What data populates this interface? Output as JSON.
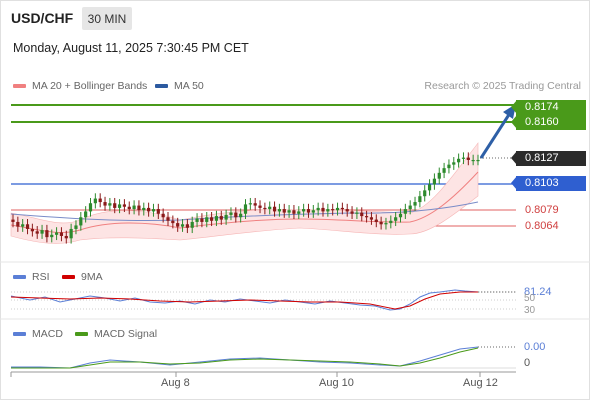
{
  "header": {
    "symbol": "USD/CHF",
    "timeframe": "30 MIN",
    "datetime": "Monday, August 11, 2025 7:30:45 PM CET"
  },
  "legend": {
    "items": [
      {
        "label": "MA 20 + Bollinger Bands",
        "color": "#f08080"
      },
      {
        "label": "MA 50",
        "color": "#2c5aa0"
      }
    ],
    "copyright": "Research © 2025 Trading Central"
  },
  "colors": {
    "green": "#4a9a1a",
    "blue": "#2f5fd0",
    "red": "#e06060",
    "arrow": "#2d5fa6",
    "current": "#2b2b2b"
  },
  "price_levels": {
    "target_high": "0.8174",
    "target_low": "0.8160",
    "current": "0.8127",
    "pivot": "0.8103",
    "support_1": "0.8079",
    "support_2": "0.8064"
  },
  "rsi": {
    "labels": [
      {
        "label": "RSI",
        "color": "#5b7fd6"
      },
      {
        "label": "9MA",
        "color": "#d00000"
      }
    ],
    "value": "81.24",
    "levels": [
      "70",
      "50",
      "30"
    ]
  },
  "macd": {
    "labels": [
      {
        "label": "MACD",
        "color": "#5b7fd6"
      },
      {
        "label": "MACD Signal",
        "color": "#4a9a1a"
      }
    ],
    "value": "0.00",
    "zero": "0"
  },
  "x_axis": {
    "labels": [
      "Aug 8",
      "Aug 10",
      "Aug 12"
    ]
  },
  "chart_data": {
    "type": "candlestick",
    "pair": "USD/CHF",
    "timeframe": "30 MIN",
    "ohlc_close_trend": [
      0.8074,
      0.807,
      0.8072,
      0.8068,
      0.8066,
      0.8064,
      0.8067,
      0.8061,
      0.8063,
      0.8065,
      0.8062,
      0.806,
      0.8068,
      0.8071,
      0.8078,
      0.8083,
      0.809,
      0.8094,
      0.8091,
      0.8088,
      0.809,
      0.8086,
      0.8089,
      0.8087,
      0.8085,
      0.8088,
      0.8084,
      0.8086,
      0.8083,
      0.8085,
      0.8081,
      0.8078,
      0.8075,
      0.8073,
      0.807,
      0.8072,
      0.8069,
      0.8074,
      0.8077,
      0.8074,
      0.8078,
      0.8075,
      0.8079,
      0.8076,
      0.808,
      0.8082,
      0.8078,
      0.8081,
      0.8089,
      0.809,
      0.8088,
      0.8086,
      0.8085,
      0.8087,
      0.8083,
      0.8085,
      0.8082,
      0.8084,
      0.8081,
      0.8083,
      0.8085,
      0.8082,
      0.8084,
      0.8086,
      0.8083,
      0.8085,
      0.8084,
      0.8086,
      0.8085,
      0.8083,
      0.8081,
      0.8082,
      0.8079,
      0.8078,
      0.8076,
      0.8074,
      0.8072,
      0.8073,
      0.8075,
      0.8078,
      0.8081,
      0.8085,
      0.8088,
      0.8091,
      0.8096,
      0.8101,
      0.8106,
      0.8111,
      0.8116,
      0.812,
      0.8123,
      0.8125,
      0.8128,
      0.8129,
      0.8127,
      0.8127,
      0.8127
    ],
    "levels": {
      "target_high": 0.8174,
      "target_low": 0.816,
      "current": 0.8127,
      "pivot": 0.8103,
      "support_1": 0.8079,
      "support_2": 0.8064
    },
    "x_labels": [
      "Aug 8",
      "Aug 10",
      "Aug 12"
    ]
  }
}
